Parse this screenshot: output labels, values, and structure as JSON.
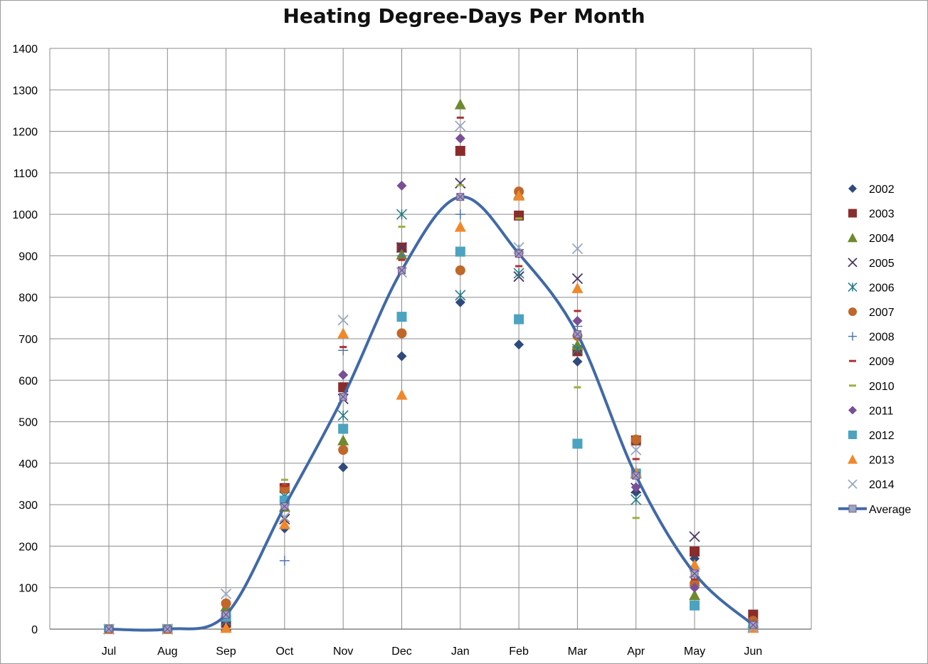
{
  "chart_data": {
    "type": "scatter",
    "title": "Heating Degree-Days Per Month",
    "xlabel": "",
    "ylabel": "",
    "ylim": [
      0,
      1400
    ],
    "ytick_step": 100,
    "grid": true,
    "legend_position": "right",
    "categories": [
      "Jul",
      "Aug",
      "Sep",
      "Oct",
      "Nov",
      "Dec",
      "Jan",
      "Feb",
      "Mar",
      "Apr",
      "May",
      "Jun"
    ],
    "x_positions": [
      0,
      1,
      2,
      3,
      4,
      5,
      6,
      7,
      8,
      9,
      10,
      11
    ],
    "series": [
      {
        "name": "2002",
        "marker": "diamond",
        "color": "#2f4a7c",
        "values": [
          0,
          0,
          10,
          243,
          390,
          658,
          788,
          686,
          645,
          330,
          170,
          10
        ]
      },
      {
        "name": "2003",
        "marker": "square",
        "color": "#8b2c2c",
        "values": [
          0,
          0,
          15,
          340,
          583,
          920,
          1153,
          997,
          670,
          455,
          187,
          35
        ]
      },
      {
        "name": "2004",
        "marker": "triangle",
        "color": "#6e8a2e",
        "values": [
          0,
          0,
          55,
          295,
          455,
          903,
          1265,
          1048,
          685,
          375,
          82,
          15
        ]
      },
      {
        "name": "2005",
        "marker": "x",
        "color": "#4a3566",
        "values": [
          0,
          0,
          8,
          265,
          555,
          920,
          1075,
          850,
          845,
          340,
          223,
          5
        ]
      },
      {
        "name": "2006",
        "marker": "asterisk",
        "color": "#2a7a88",
        "values": [
          0,
          0,
          20,
          320,
          515,
          1000,
          805,
          858,
          675,
          312,
          115,
          10
        ]
      },
      {
        "name": "2007",
        "marker": "circle",
        "color": "#c0672a",
        "values": [
          0,
          0,
          62,
          338,
          432,
          713,
          865,
          1055,
          707,
          457,
          110,
          20
        ]
      },
      {
        "name": "2008",
        "marker": "plus",
        "color": "#4a6fa5",
        "values": [
          0,
          0,
          30,
          165,
          672,
          900,
          1000,
          915,
          730,
          380,
          140,
          8
        ]
      },
      {
        "name": "2009",
        "marker": "dash",
        "color": "#b03030",
        "values": [
          0,
          0,
          22,
          345,
          680,
          890,
          1233,
          875,
          767,
          410,
          120,
          12
        ]
      },
      {
        "name": "2010",
        "marker": "dash",
        "color": "#9ab040",
        "values": [
          0,
          0,
          40,
          360,
          560,
          970,
          1070,
          990,
          583,
          268,
          100,
          6
        ]
      },
      {
        "name": "2011",
        "marker": "diamond",
        "color": "#7a4f96",
        "values": [
          0,
          0,
          25,
          300,
          613,
          1069,
          1183,
          905,
          743,
          342,
          100,
          10
        ]
      },
      {
        "name": "2012",
        "marker": "square",
        "color": "#4ba3c0",
        "values": [
          0,
          0,
          30,
          310,
          483,
          753,
          910,
          747,
          447,
          375,
          57,
          5
        ]
      },
      {
        "name": "2013",
        "marker": "triangle",
        "color": "#f0882a",
        "values": [
          0,
          0,
          3,
          253,
          713,
          565,
          970,
          1045,
          822,
          378,
          155,
          3
        ]
      },
      {
        "name": "2014",
        "marker": "x",
        "color": "#9aa7c2",
        "values": [
          0,
          0,
          85,
          270,
          745,
          860,
          1213,
          920,
          917,
          432,
          135,
          3
        ]
      },
      {
        "name": "Average",
        "marker": "line",
        "color": "#4169a8",
        "values": [
          0,
          0,
          35,
          296,
          560,
          865,
          1042,
          905,
          711,
          370,
          134,
          10
        ]
      }
    ]
  }
}
